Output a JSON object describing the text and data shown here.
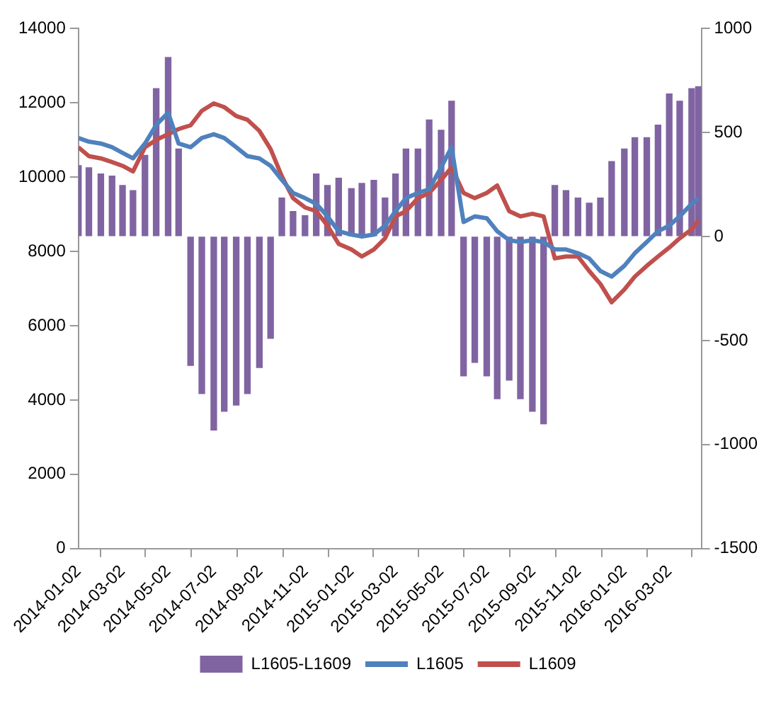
{
  "chart_data": {
    "type": "bar",
    "legend": "bottom",
    "x": [
      "2014-01-02",
      "2014-01-16",
      "2014-02-01",
      "2014-02-16",
      "2014-03-02",
      "2014-03-16",
      "2014-04-01",
      "2014-04-16",
      "2014-05-02",
      "2014-05-16",
      "2014-06-01",
      "2014-06-16",
      "2014-07-02",
      "2014-07-16",
      "2014-08-01",
      "2014-08-16",
      "2014-09-01",
      "2014-09-16",
      "2014-10-01",
      "2014-10-16",
      "2014-11-01",
      "2014-11-16",
      "2014-12-01",
      "2014-12-16",
      "2015-01-02",
      "2015-01-16",
      "2015-02-01",
      "2015-02-16",
      "2015-03-02",
      "2015-03-16",
      "2015-04-01",
      "2015-04-16",
      "2015-05-02",
      "2015-05-16",
      "2015-06-01",
      "2015-06-16",
      "2015-07-02",
      "2015-07-16",
      "2015-08-01",
      "2015-08-16",
      "2015-09-01",
      "2015-09-16",
      "2015-10-01",
      "2015-10-16",
      "2015-11-01",
      "2015-11-16",
      "2015-12-01",
      "2015-12-16",
      "2016-01-02",
      "2016-01-16",
      "2016-02-01",
      "2016-02-16",
      "2016-03-02",
      "2016-03-16",
      "2016-04-01",
      "2016-04-10"
    ],
    "series": [
      {
        "name": "L1605-L1609",
        "axis": "y2",
        "color": "#8064a2",
        "values": [
          340,
          330,
          300,
          290,
          245,
          220,
          390,
          710,
          860,
          420,
          -620,
          -755,
          -930,
          -840,
          -810,
          -755,
          -630,
          -490,
          185,
          120,
          100,
          300,
          245,
          280,
          230,
          255,
          270,
          185,
          300,
          420,
          420,
          560,
          510,
          650,
          -670,
          -605,
          -670,
          -780,
          -690,
          -780,
          -840,
          -900,
          245,
          220,
          185,
          160,
          185,
          360,
          420,
          475,
          475,
          535,
          685,
          650,
          710,
          720
        ]
      },
      {
        "name": "L1605",
        "type": "line",
        "color": "#4f81bd",
        "values": [
          11050,
          10950,
          10900,
          10800,
          10650,
          10500,
          10900,
          11400,
          11730,
          10900,
          10800,
          11050,
          11150,
          11050,
          10800,
          10560,
          10500,
          10300,
          9920,
          9570,
          9430,
          9280,
          8940,
          8540,
          8450,
          8400,
          8450,
          8690,
          9080,
          9430,
          9570,
          9670,
          10260,
          10800,
          8790,
          8940,
          8890,
          8540,
          8300,
          8250,
          8300,
          8250,
          8050,
          8050,
          7950,
          7810,
          7470,
          7320,
          7610,
          7950,
          8250,
          8540,
          8690,
          8940,
          9280,
          9430
        ]
      },
      {
        "name": "L1609",
        "type": "line",
        "color": "#c0504d",
        "values": [
          10800,
          10560,
          10500,
          10400,
          10300,
          10150,
          10800,
          11000,
          11150,
          11290,
          11390,
          11780,
          11980,
          11880,
          11640,
          11540,
          11240,
          10750,
          10020,
          9430,
          9180,
          9080,
          8690,
          8200,
          8050,
          7860,
          8050,
          8350,
          8940,
          9080,
          9430,
          9570,
          9920,
          10260,
          9570,
          9430,
          9570,
          9770,
          9080,
          8940,
          9010,
          8940,
          7810,
          7860,
          7860,
          7470,
          7120,
          6630,
          6970,
          7320,
          7610,
          7860,
          8100,
          8350,
          8590,
          8830
        ]
      }
    ],
    "xlim": [
      "2014-01-02",
      "2016-04-14"
    ],
    "xticks": [
      "2014-01-02",
      "2014-03-02",
      "2014-05-02",
      "2014-07-02",
      "2014-09-02",
      "2014-11-02",
      "2015-01-02",
      "2015-03-02",
      "2015-05-02",
      "2015-07-02",
      "2015-09-02",
      "2015-11-02",
      "2016-01-02",
      "2016-03-02"
    ],
    "ylim": [
      0,
      14000
    ],
    "yticks": [
      0,
      2000,
      4000,
      6000,
      8000,
      10000,
      12000,
      14000
    ],
    "y2lim": [
      -1500,
      1000
    ],
    "y2ticks": [
      -1500,
      -1000,
      -500,
      0,
      500,
      1000
    ]
  }
}
